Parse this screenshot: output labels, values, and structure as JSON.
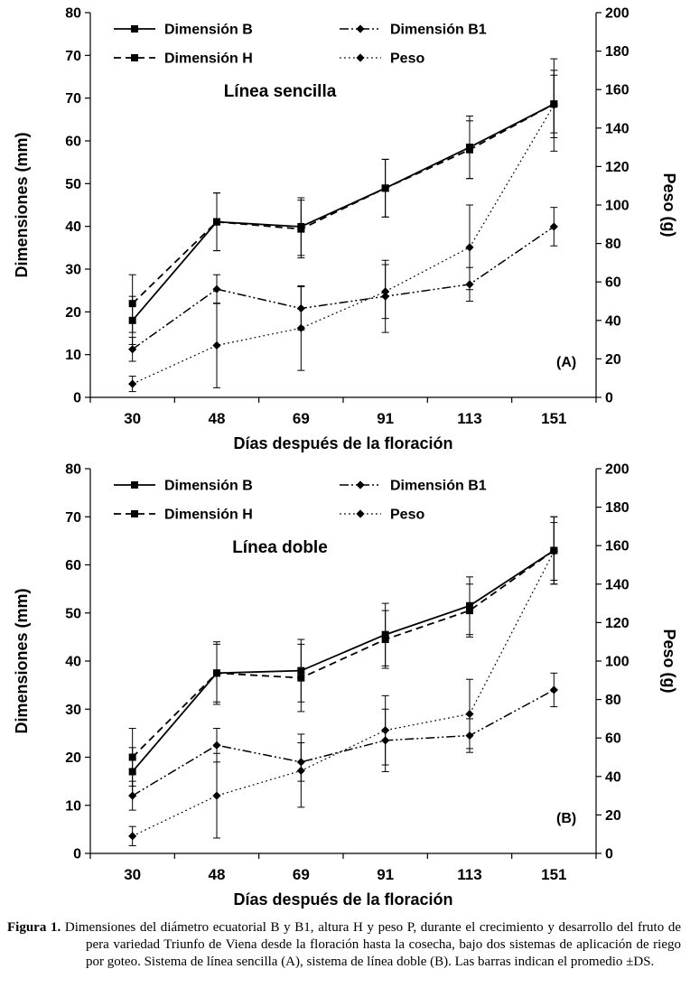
{
  "caption": {
    "label": "Figura 1.",
    "text": "Dimensiones del diámetro ecuatorial B y B1, altura H y peso P, durante el crecimiento y desarrollo del fruto de pera variedad Triunfo de Viena desde la floración hasta la cosecha, bajo dos sistemas de aplicación de riego por goteo. Sistema de línea sencilla (A), sistema de línea doble (B). Las barras indican el promedio ±DS."
  },
  "chart_data": [
    {
      "type": "line",
      "panel_label": "(A)",
      "title": "Línea sencilla",
      "xlabel": "Días después de la floración",
      "ylabel_left": "Dimensiones (mm)",
      "ylabel_right": "Peso (g)",
      "x_categories": [
        "30",
        "48",
        "69",
        "91",
        "113",
        "151"
      ],
      "y_left_ticklabels": [
        "80",
        "70",
        "70",
        "60",
        "50",
        "40",
        "30",
        "20",
        "10",
        "0"
      ],
      "y_right_ticklabels": [
        "200",
        "180",
        "160",
        "140",
        "120",
        "100",
        "80",
        "60",
        "40",
        "20",
        "0"
      ],
      "ylim_left": [
        0,
        80
      ],
      "ylim_right": [
        0,
        200
      ],
      "grid": false,
      "legend_position": "top-inside",
      "series": [
        {
          "name": "Dimensión B",
          "axis": "left",
          "line": "solid",
          "marker": "square",
          "values": [
            16,
            36.5,
            35.5,
            43.5,
            52,
            61
          ],
          "errors": [
            5,
            6,
            6,
            6,
            6.5,
            6
          ]
        },
        {
          "name": "Dimensión H",
          "axis": "left",
          "line": "dashed",
          "marker": "square",
          "values": [
            19.5,
            36.5,
            35,
            43.5,
            51.5,
            61
          ],
          "errors": [
            6,
            6,
            6,
            6,
            6,
            7
          ]
        },
        {
          "name": "Dimensión B1",
          "axis": "left",
          "line": "dashdotdot",
          "marker": "diamond",
          "values": [
            10,
            22.5,
            18.5,
            21,
            23.5,
            35.5
          ],
          "errors": [
            2.5,
            3,
            4.5,
            7.5,
            3.5,
            4
          ]
        },
        {
          "name": "Peso",
          "axis": "right",
          "line": "dotted",
          "marker": "diamond",
          "values": [
            7,
            27,
            36,
            55,
            78,
            152
          ],
          "errors": [
            4,
            22,
            22,
            14,
            22,
            24
          ]
        }
      ]
    },
    {
      "type": "line",
      "panel_label": "(B)",
      "title": "Línea doble",
      "xlabel": "Días después de la floración",
      "ylabel_left": "Dimensiones (mm)",
      "ylabel_right": "Peso (g)",
      "x_categories": [
        "30",
        "48",
        "69",
        "91",
        "113",
        "151"
      ],
      "y_left_ticklabels": [
        "80",
        "70",
        "60",
        "50",
        "40",
        "30",
        "20",
        "10",
        "0"
      ],
      "y_right_ticklabels": [
        "200",
        "180",
        "160",
        "140",
        "120",
        "100",
        "80",
        "60",
        "40",
        "20",
        "0"
      ],
      "ylim_left": [
        0,
        80
      ],
      "ylim_right": [
        0,
        200
      ],
      "grid": false,
      "legend_position": "top-inside",
      "series": [
        {
          "name": "Dimensión B",
          "axis": "left",
          "line": "solid",
          "marker": "square",
          "values": [
            17,
            37.5,
            38,
            45.5,
            51.5,
            63
          ],
          "errors": [
            5,
            6.5,
            6.5,
            6.5,
            6,
            7
          ]
        },
        {
          "name": "Dimensión H",
          "axis": "left",
          "line": "dashed",
          "marker": "square",
          "values": [
            20,
            37.5,
            36.5,
            44.5,
            50.5,
            63
          ],
          "errors": [
            6,
            6,
            7,
            6,
            5.5,
            7
          ]
        },
        {
          "name": "Dimensión B1",
          "axis": "left",
          "line": "dashdotdot",
          "marker": "diamond",
          "values": [
            12,
            22.5,
            19,
            23.5,
            24.5,
            34
          ],
          "errors": [
            3,
            3.5,
            4,
            6.5,
            3.5,
            3.5
          ]
        },
        {
          "name": "Peso",
          "axis": "right",
          "line": "dotted",
          "marker": "diamond",
          "values": [
            9,
            30,
            43,
            64,
            72.5,
            157
          ],
          "errors": [
            5,
            22,
            19,
            18,
            18,
            15
          ]
        }
      ]
    }
  ]
}
